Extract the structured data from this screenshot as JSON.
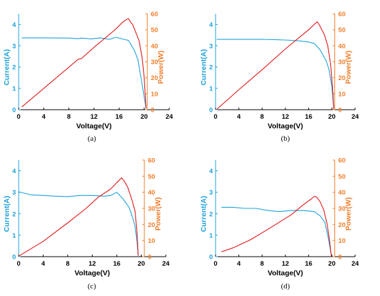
{
  "colors": {
    "current": "#1ca0d8",
    "power": "#e01616",
    "power_axis": "#f07e2a",
    "axis": "#000000"
  },
  "chart_data": [
    {
      "type": "line",
      "caption": "(a)",
      "xlabel": "Voltage(V)",
      "ylabel_left": "Current(A)",
      "ylabel_right": "Power(W)",
      "xlim": [
        0,
        24
      ],
      "ylim_left": [
        0,
        4.5
      ],
      "ylim_right": [
        0,
        60
      ],
      "x_ticks": [
        0,
        4,
        8,
        12,
        16,
        20,
        24
      ],
      "y_left_ticks": [
        0,
        1,
        2,
        3,
        4
      ],
      "y_right_ticks": [
        0,
        10,
        20,
        30,
        40,
        50,
        60
      ],
      "grid": false,
      "series": [
        {
          "axis": "left",
          "points": [
            [
              0.5,
              3.37
            ],
            [
              4,
              3.37
            ],
            [
              8,
              3.36
            ],
            [
              9.5,
              3.33
            ],
            [
              10,
              3.36
            ],
            [
              11.5,
              3.32
            ],
            [
              13,
              3.37
            ],
            [
              14.5,
              3.3
            ],
            [
              15.5,
              3.4
            ],
            [
              16.5,
              3.32
            ],
            [
              17.5,
              3.25
            ],
            [
              18,
              3.0
            ],
            [
              18.5,
              2.75
            ],
            [
              19,
              2.35
            ],
            [
              19.5,
              1.5
            ],
            [
              20,
              0.6
            ],
            [
              20.3,
              0.05
            ]
          ]
        },
        {
          "axis": "right",
          "points": [
            [
              0.5,
              1.7
            ],
            [
              9.5,
              31.6
            ],
            [
              10,
              32
            ],
            [
              12,
              39
            ],
            [
              14,
              45.6
            ],
            [
              15.5,
              50.5
            ],
            [
              16.5,
              54.5
            ],
            [
              17,
              56
            ],
            [
              17.5,
              57
            ],
            [
              17.8,
              55
            ],
            [
              18.2,
              53
            ],
            [
              18.7,
              48
            ],
            [
              19.2,
              43
            ],
            [
              19.7,
              32
            ],
            [
              20,
              20
            ],
            [
              20.3,
              1
            ]
          ]
        }
      ]
    },
    {
      "type": "line",
      "caption": "(b)",
      "xlabel": "Voltage(V)",
      "ylabel_left": "Current(A)",
      "ylabel_right": "Power(W)",
      "xlim": [
        0,
        24
      ],
      "ylim_left": [
        0,
        4.5
      ],
      "ylim_right": [
        0,
        60
      ],
      "x_ticks": [
        0,
        4,
        8,
        12,
        16,
        20,
        24
      ],
      "y_left_ticks": [
        0,
        1,
        2,
        3,
        4
      ],
      "y_right_ticks": [
        0,
        10,
        20,
        30,
        40,
        50,
        60
      ],
      "grid": false,
      "series": [
        {
          "axis": "left",
          "points": [
            [
              0.2,
              3.3
            ],
            [
              4,
              3.3
            ],
            [
              8,
              3.3
            ],
            [
              10,
              3.29
            ],
            [
              12,
              3.27
            ],
            [
              14,
              3.24
            ],
            [
              16,
              3.18
            ],
            [
              17,
              3.1
            ],
            [
              18,
              2.8
            ],
            [
              19,
              2.3
            ],
            [
              19.5,
              1.9
            ],
            [
              20,
              1.1
            ],
            [
              20.3,
              0.05
            ]
          ]
        },
        {
          "axis": "right",
          "points": [
            [
              0.2,
              0.2
            ],
            [
              4,
              12.5
            ],
            [
              8,
              25
            ],
            [
              12,
              38
            ],
            [
              14,
              44
            ],
            [
              16,
              50
            ],
            [
              17,
              53.5
            ],
            [
              17.5,
              55
            ],
            [
              18,
              52
            ],
            [
              18.7,
              47
            ],
            [
              19.3,
              40
            ],
            [
              19.8,
              28
            ],
            [
              20.2,
              10
            ],
            [
              20.3,
              0.3
            ]
          ]
        }
      ]
    },
    {
      "type": "line",
      "caption": "(c)",
      "xlabel": "Voltage(V)",
      "ylabel_left": "Current(A)",
      "ylabel_right": "Power(W)",
      "xlim": [
        0,
        24
      ],
      "ylim_left": [
        0,
        4.5
      ],
      "ylim_right": [
        0,
        60
      ],
      "x_ticks": [
        0,
        4,
        8,
        12,
        16,
        20,
        24
      ],
      "y_left_ticks": [
        0,
        1,
        2,
        3,
        4
      ],
      "y_right_ticks": [
        0,
        10,
        20,
        30,
        40,
        50,
        60
      ],
      "grid": false,
      "series": [
        {
          "axis": "left",
          "points": [
            [
              0,
              3.02
            ],
            [
              2,
              2.88
            ],
            [
              4,
              2.85
            ],
            [
              6,
              2.82
            ],
            [
              8,
              2.8
            ],
            [
              10,
              2.85
            ],
            [
              12,
              2.85
            ],
            [
              14,
              2.82
            ],
            [
              15,
              2.85
            ],
            [
              16,
              3.0
            ],
            [
              17,
              2.7
            ],
            [
              18,
              2.3
            ],
            [
              18.5,
              1.9
            ],
            [
              19,
              1.4
            ],
            [
              19.3,
              0.7
            ],
            [
              19.5,
              0.05
            ]
          ]
        },
        {
          "axis": "right",
          "points": [
            [
              0,
              0.3
            ],
            [
              4,
              9.5
            ],
            [
              8,
              21
            ],
            [
              11,
              30
            ],
            [
              13,
              37
            ],
            [
              15,
              42
            ],
            [
              16,
              46
            ],
            [
              16.8,
              49
            ],
            [
              17.2,
              47
            ],
            [
              17.8,
              43
            ],
            [
              18.5,
              35
            ],
            [
              19,
              28
            ],
            [
              19.3,
              15
            ],
            [
              19.5,
              0.5
            ]
          ]
        }
      ]
    },
    {
      "type": "line",
      "caption": "(d)",
      "xlabel": "Voltage(V)",
      "ylabel_left": "Current(A)",
      "ylabel_right": "Power(W)",
      "xlim": [
        0,
        24
      ],
      "ylim_left": [
        0,
        4.5
      ],
      "ylim_right": [
        0,
        60
      ],
      "x_ticks": [
        0,
        4,
        8,
        12,
        16,
        20,
        24
      ],
      "y_left_ticks": [
        0,
        1,
        2,
        3,
        4
      ],
      "y_right_ticks": [
        0,
        10,
        20,
        30,
        40,
        50,
        60
      ],
      "grid": false,
      "series": [
        {
          "axis": "left",
          "points": [
            [
              1,
              2.3
            ],
            [
              3,
              2.3
            ],
            [
              5,
              2.25
            ],
            [
              7,
              2.25
            ],
            [
              9,
              2.15
            ],
            [
              11,
              2.1
            ],
            [
              13,
              2.15
            ],
            [
              15,
              2.15
            ],
            [
              17,
              2.1
            ],
            [
              18,
              1.9
            ],
            [
              18.8,
              1.6
            ],
            [
              19.3,
              1.0
            ],
            [
              19.7,
              0.4
            ],
            [
              19.9,
              0.05
            ]
          ]
        },
        {
          "axis": "right",
          "points": [
            [
              1,
              3
            ],
            [
              3,
              5.5
            ],
            [
              6,
              10.5
            ],
            [
              9,
              17
            ],
            [
              11,
              21.5
            ],
            [
              13,
              26
            ],
            [
              15,
              32
            ],
            [
              16.5,
              36
            ],
            [
              17,
              37.5
            ],
            [
              17.4,
              37
            ],
            [
              18,
              34
            ],
            [
              18.6,
              29
            ],
            [
              19.2,
              20
            ],
            [
              19.6,
              10
            ],
            [
              19.9,
              0.5
            ]
          ]
        }
      ]
    }
  ]
}
